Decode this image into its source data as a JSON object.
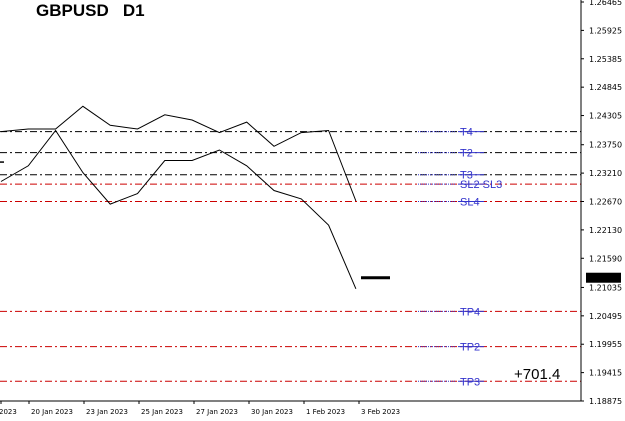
{
  "title": "GBPUSD   D1",
  "pnl": "+701.4",
  "current_price": "1.21219",
  "colors": {
    "price": "#000000",
    "target_line": "#000000",
    "stop_line": "#cc0000",
    "level_label": "#3333cc",
    "level_marker": "#3333cc",
    "current_price_bg": "#000000",
    "current_price_text": "#ffffff"
  },
  "chart_data": {
    "type": "line",
    "symbol": "GBPUSD",
    "timeframe": "D1",
    "y_axis": {
      "ticks": [
        1.26465,
        1.25925,
        1.25385,
        1.24845,
        1.24305,
        1.2375,
        1.2321,
        1.2267,
        1.2213,
        1.2159,
        1.21035,
        1.20495,
        1.19955,
        1.19415,
        1.18875
      ],
      "tick_labels": [
        "1.26465",
        "1.25925",
        "1.25385",
        "1.24845",
        "1.24305",
        "1.23750",
        "1.23210",
        "1.22670",
        "1.22130",
        "1.21590",
        "1.21035",
        "1.20495",
        "1.19955",
        "1.19415",
        "1.18875"
      ],
      "range": [
        1.18875,
        1.26465
      ]
    },
    "x_axis": {
      "tick_labels": [
        "2023",
        "20 Jan 2023",
        "23 Jan 2023",
        "25 Jan 2023",
        "27 Jan 2023",
        "30 Jan 2023",
        "1 Feb 2023",
        "3 Feb 2023"
      ]
    },
    "series": [
      {
        "values": [
          1.24,
          1.2405,
          1.2405,
          1.2448,
          1.2412,
          1.2405,
          1.2432,
          1.2422,
          1.2398,
          1.2418,
          1.2372,
          1.2398,
          1.2402,
          1.2268
        ]
      },
      {
        "values": [
          1.2305,
          1.2335,
          1.2402,
          1.2322,
          1.2262,
          1.2282,
          1.2345,
          1.2345,
          1.2365,
          1.2335,
          1.2288,
          1.2272,
          1.2222,
          1.2101
        ]
      }
    ],
    "current_price_marker": 1.2122,
    "levels": [
      {
        "label": "T4",
        "price": 1.24,
        "kind": "target"
      },
      {
        "label": "T2",
        "price": 1.236,
        "kind": "target"
      },
      {
        "label": "T3",
        "price": 1.2318,
        "kind": "target"
      },
      {
        "label": "SL2 SL3",
        "price": 1.23,
        "kind": "stop"
      },
      {
        "label": "SL4",
        "price": 1.2267,
        "kind": "stop"
      },
      {
        "label": "TP4",
        "price": 1.2058,
        "kind": "stop"
      },
      {
        "label": "TP2",
        "price": 1.1991,
        "kind": "stop"
      },
      {
        "label": "TP3",
        "price": 1.1925,
        "kind": "stop"
      }
    ]
  }
}
